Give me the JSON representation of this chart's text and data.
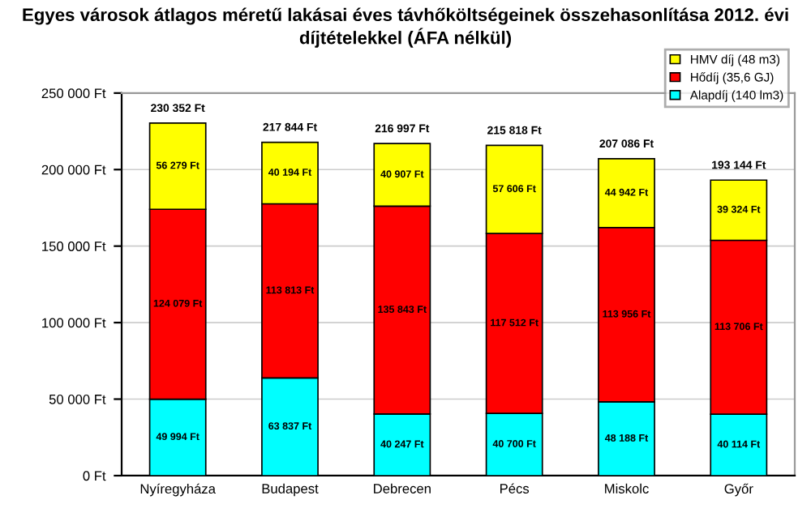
{
  "chart_data": {
    "type": "bar",
    "stacked": true,
    "title": "Egyes városok átlagos méretű lakásai éves távhőköltségeinek összehasonlítása 2012. évi díjtételekkel (ÁFA nélkül)",
    "categories": [
      "Nyíregyháza",
      "Budapest",
      "Debrecen",
      "Pécs",
      "Miskolc",
      "Győr"
    ],
    "series": [
      {
        "name": "Alapdíj (140 lm3)",
        "color": "#00ffff",
        "values": [
          49994,
          63837,
          40247,
          40700,
          48188,
          40114
        ],
        "value_labels": [
          "49 994 Ft",
          "63 837 Ft",
          "40 247 Ft",
          "40 700 Ft",
          "48 188 Ft",
          "40 114 Ft"
        ]
      },
      {
        "name": "Hődíj (35,6 GJ)",
        "color": "#ff0000",
        "values": [
          124079,
          113813,
          135843,
          117512,
          113956,
          113706
        ],
        "value_labels": [
          "124 079 Ft",
          "113 813 Ft",
          "135 843 Ft",
          "117 512 Ft",
          "113 956 Ft",
          "113 706 Ft"
        ]
      },
      {
        "name": "HMV díj (48 m3)",
        "color": "#ffff00",
        "values": [
          56279,
          40194,
          40907,
          57606,
          44942,
          39324
        ],
        "value_labels": [
          "56 279 Ft",
          "40 194 Ft",
          "40 907 Ft",
          "57 606 Ft",
          "44 942 Ft",
          "39 324 Ft"
        ]
      }
    ],
    "totals": [
      "230 352 Ft",
      "217 844 Ft",
      "216 997 Ft",
      "215 818 Ft",
      "207 086 Ft",
      "193 144 Ft"
    ],
    "ylim": [
      0,
      250000
    ],
    "yticks": [
      {
        "value": 0,
        "label": "0 Ft"
      },
      {
        "value": 50000,
        "label": "50 000 Ft"
      },
      {
        "value": 100000,
        "label": "100 000 Ft"
      },
      {
        "value": 150000,
        "label": "150 000 Ft"
      },
      {
        "value": 200000,
        "label": "200 000 Ft"
      },
      {
        "value": 250000,
        "label": "250 000 Ft"
      }
    ],
    "grid": "y",
    "legend": "top right"
  }
}
